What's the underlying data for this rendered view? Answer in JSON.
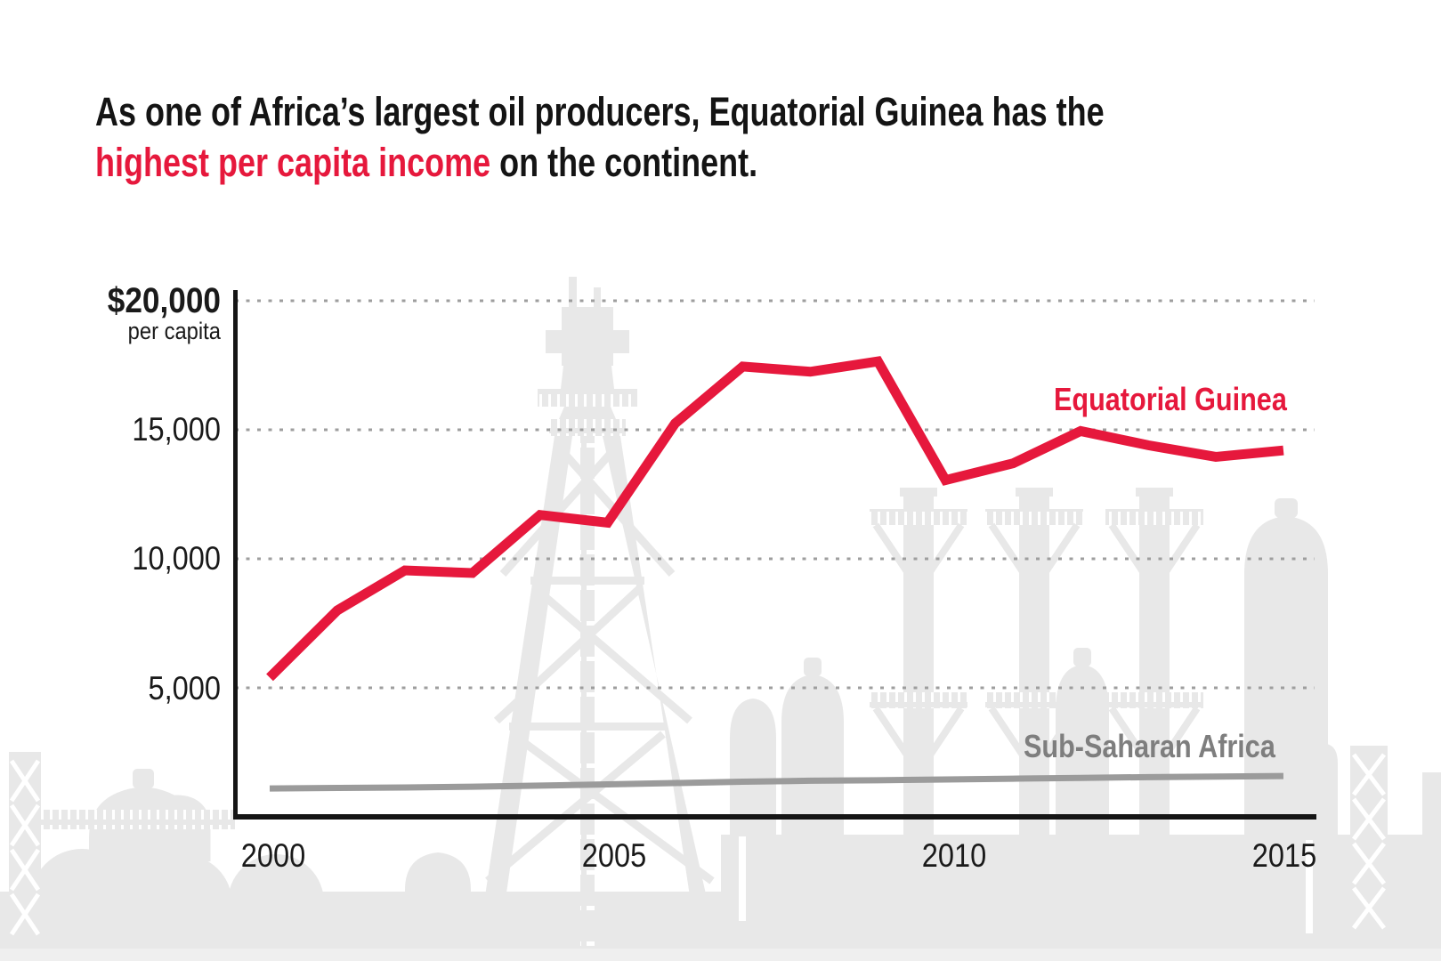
{
  "title": {
    "line1": "As one of Africa’s largest oil producers, Equatorial Guinea has the",
    "line2_highlight": "highest per capita income",
    "line2_rest": " on the continent."
  },
  "y_axis": {
    "label_20000": "$20,000",
    "sublabel": "per capita",
    "label_15000": "15,000",
    "label_10000": "10,000",
    "label_5000": "5,000"
  },
  "x_axis": {
    "label_2000": "2000",
    "label_2005": "2005",
    "label_2010": "2010",
    "label_2015": "2015"
  },
  "series_labels": {
    "equatorial_guinea": "Equatorial Guinea",
    "sub_saharan_africa": "Sub-Saharan Africa"
  },
  "colors": {
    "accent_red": "#e6183c",
    "gray_line": "#9b9b9b",
    "label_gray": "#7e7e7e",
    "silhouette_gray": "#e8e8e8",
    "gridline_gray": "#9e9e9e",
    "text_black": "#141414"
  },
  "chart_data": {
    "type": "line",
    "x": [
      2000,
      2001,
      2002,
      2003,
      2004,
      2005,
      2006,
      2007,
      2008,
      2009,
      2010,
      2011,
      2012,
      2013,
      2014,
      2015
    ],
    "series": [
      {
        "name": "Equatorial Guinea",
        "color": "#e6183c",
        "values": [
          5400,
          8000,
          9550,
          9450,
          11700,
          11400,
          15250,
          17450,
          17250,
          17650,
          13050,
          13700,
          14950,
          14400,
          13950,
          14200
        ]
      },
      {
        "name": "Sub-Saharan Africa",
        "color": "#9b9b9b",
        "values": [
          1100,
          1120,
          1140,
          1170,
          1210,
          1260,
          1310,
          1360,
          1400,
          1420,
          1450,
          1480,
          1510,
          1540,
          1560,
          1580
        ]
      }
    ],
    "title": "As one of Africa’s largest oil producers, Equatorial Guinea has the highest per capita income on the continent.",
    "xlabel": "",
    "ylabel": "$ per capita",
    "ylim": [
      0,
      20000
    ],
    "yticks": [
      5000,
      10000,
      15000,
      20000
    ],
    "xticks": [
      2000,
      2005,
      2010,
      2015
    ],
    "grid": "dotted-horizontal",
    "legend_position": "inline-right"
  }
}
